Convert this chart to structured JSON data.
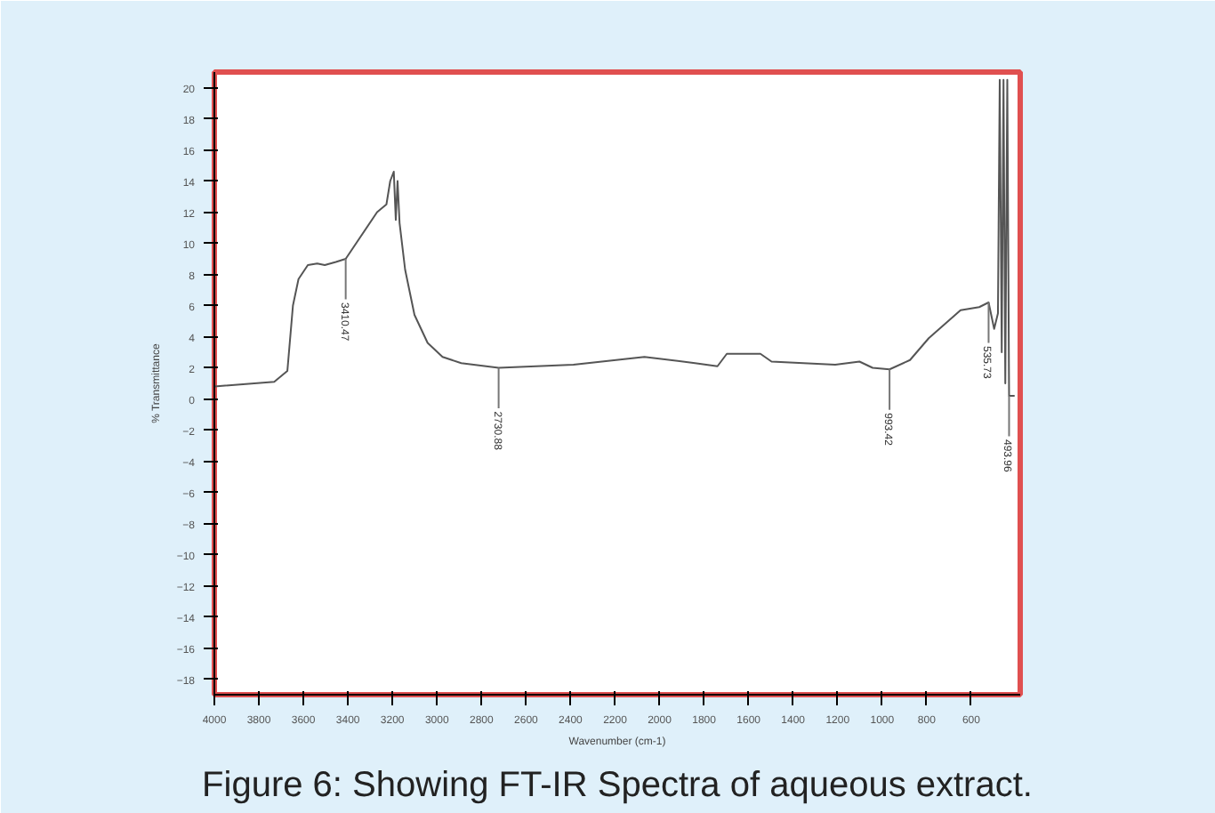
{
  "chart_data": {
    "type": "line",
    "title": "Figure 6: Showing FT-IR Spectra of aqueous extract.",
    "xlabel": "Wavenumber (cm-1)",
    "ylabel": "% Transmittance",
    "x": [
      4000,
      3731,
      3672,
      3647,
      3622,
      3580,
      3538,
      3504,
      3454,
      3410,
      3269,
      3227,
      3210,
      3194,
      3185,
      3177,
      3168,
      3143,
      3101,
      3042,
      2975,
      2891,
      2723,
      2387,
      2068,
      1841,
      1740,
      1698,
      1547,
      1497,
      1211,
      1102,
      1043,
      967,
      875,
      791,
      648,
      564,
      522,
      497,
      480,
      472,
      463,
      455,
      447,
      438,
      430,
      405
    ],
    "series": [
      {
        "color": "#555555",
        "values": [
          0.8,
          1.1,
          1.8,
          6,
          7.7,
          8.6,
          8.7,
          8.6,
          8.8,
          9.0,
          12,
          12.5,
          14,
          14.6,
          11.5,
          14,
          11.3,
          8.3,
          5.4,
          3.6,
          2.7,
          2.3,
          2.0,
          2.2,
          2.7,
          2.3,
          2.1,
          2.9,
          2.9,
          2.4,
          2.2,
          2.4,
          2.0,
          1.9,
          2.5,
          3.9,
          5.7,
          5.9,
          6.2,
          4.5,
          5.5,
          20.5,
          3,
          20.5,
          1,
          20.5,
          0.2,
          0.2
        ]
      }
    ],
    "annotations": [
      {
        "text": "3410.47",
        "x": 3410,
        "y": 9.0
      },
      {
        "text": "2730.88",
        "x": 2723,
        "y": 2.0
      },
      {
        "text": "993.42",
        "x": 967,
        "y": 1.9
      },
      {
        "text": "535.73",
        "x": 522,
        "y": 6.2
      },
      {
        "text": "493.96",
        "x": 430,
        "y": 0.2
      }
    ],
    "xlim": [
      4000,
      380
    ],
    "xticks": [
      4000,
      3800,
      3600,
      3400,
      3200,
      3000,
      2800,
      2600,
      2400,
      2200,
      2000,
      1800,
      1600,
      1400,
      1200,
      1000,
      800,
      600
    ],
    "ylim": [
      -19,
      21
    ],
    "yticks": [
      -18,
      -16,
      -14,
      -12,
      -10,
      -8,
      -6,
      -4,
      -2,
      0,
      2,
      4,
      6,
      8,
      10,
      12,
      14,
      16,
      18,
      20
    ],
    "grid": false,
    "marker": "none",
    "line_style": "solid"
  }
}
